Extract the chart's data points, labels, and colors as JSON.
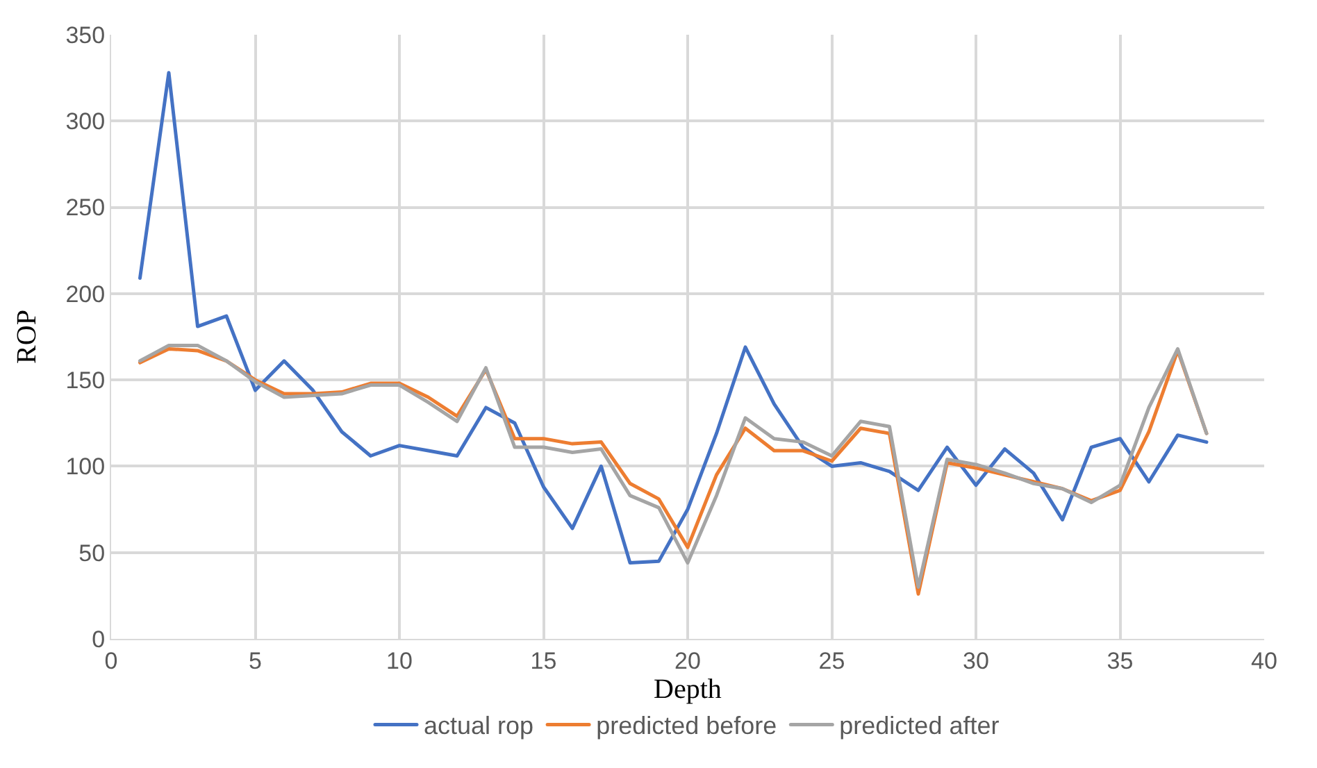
{
  "chart_data": {
    "type": "line",
    "xlabel": "Depth",
    "ylabel": "ROP",
    "x": [
      1,
      2,
      3,
      4,
      5,
      6,
      7,
      8,
      9,
      10,
      11,
      12,
      13,
      14,
      15,
      16,
      17,
      18,
      19,
      20,
      21,
      22,
      23,
      24,
      25,
      26,
      27,
      28,
      29,
      30,
      31,
      32,
      33,
      34,
      35,
      36,
      37,
      38
    ],
    "series": [
      {
        "name": "actual rop",
        "color": "#4472c4",
        "values": [
          209,
          328,
          181,
          187,
          144,
          161,
          144,
          120,
          106,
          112,
          109,
          106,
          134,
          125,
          88,
          64,
          100,
          44,
          45,
          75,
          119,
          169,
          136,
          111,
          100,
          102,
          97,
          86,
          111,
          89,
          110,
          96,
          69,
          111,
          116,
          91,
          118,
          114
        ]
      },
      {
        "name": "predicted before",
        "color": "#ed7d31",
        "values": [
          160,
          168,
          167,
          161,
          150,
          142,
          142,
          143,
          148,
          148,
          140,
          129,
          156,
          116,
          116,
          113,
          114,
          90,
          81,
          53,
          95,
          122,
          109,
          109,
          103,
          122,
          119,
          26,
          102,
          99,
          95,
          91,
          87,
          80,
          86,
          120,
          167,
          119
        ]
      },
      {
        "name": "predicted after",
        "color": "#a5a5a5",
        "values": [
          161,
          170,
          170,
          161,
          149,
          140,
          141,
          142,
          147,
          147,
          137,
          126,
          157,
          111,
          111,
          108,
          110,
          83,
          76,
          44,
          83,
          128,
          116,
          114,
          106,
          126,
          123,
          30,
          104,
          101,
          96,
          90,
          87,
          79,
          89,
          134,
          168,
          119
        ]
      }
    ],
    "xlim": [
      0,
      40
    ],
    "xticks": [
      0,
      5,
      10,
      15,
      20,
      25,
      30,
      35,
      40
    ],
    "ylim": [
      0,
      350
    ],
    "yticks": [
      0,
      50,
      100,
      150,
      200,
      250,
      300,
      350
    ],
    "grid": true,
    "legend": "bottom",
    "marker": "none",
    "line_style": "solid"
  }
}
